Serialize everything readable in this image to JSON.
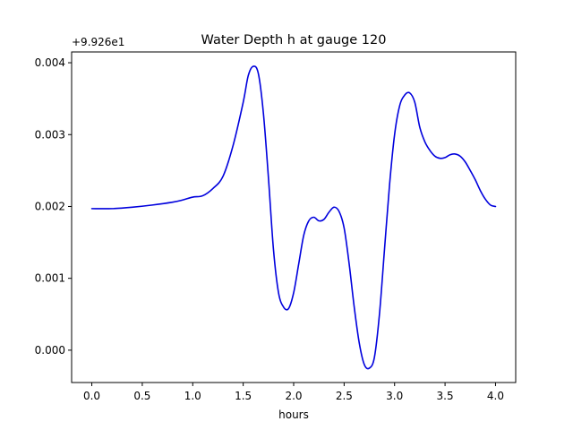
{
  "chart_data": {
    "type": "line",
    "title": "Water Depth h at gauge 120",
    "xlabel": "hours",
    "ylabel": "",
    "y_offset_label": "+9.926e1",
    "xlim": [
      -0.2,
      4.2
    ],
    "ylim": [
      -0.00045,
      0.00415
    ],
    "x_ticks": [
      0.0,
      0.5,
      1.0,
      1.5,
      2.0,
      2.5,
      3.0,
      3.5,
      4.0
    ],
    "x_tick_labels": [
      "0.0",
      "0.5",
      "1.0",
      "1.5",
      "2.0",
      "2.5",
      "3.0",
      "3.5",
      "4.0"
    ],
    "y_ticks": [
      0.0,
      0.001,
      0.002,
      0.003,
      0.004
    ],
    "y_tick_labels": [
      "0.000",
      "0.001",
      "0.002",
      "0.003",
      "0.004"
    ],
    "grid": false,
    "legend": "none",
    "series": [
      {
        "color": "#0000dd",
        "x": [
          0.0,
          0.2,
          0.4,
          0.6,
          0.8,
          0.9,
          1.0,
          1.1,
          1.2,
          1.3,
          1.4,
          1.5,
          1.55,
          1.6,
          1.65,
          1.7,
          1.75,
          1.8,
          1.85,
          1.9,
          1.95,
          2.0,
          2.05,
          2.1,
          2.15,
          2.2,
          2.25,
          2.3,
          2.35,
          2.4,
          2.45,
          2.5,
          2.55,
          2.6,
          2.65,
          2.7,
          2.75,
          2.8,
          2.85,
          2.9,
          2.95,
          3.0,
          3.05,
          3.1,
          3.15,
          3.2,
          3.25,
          3.3,
          3.35,
          3.4,
          3.45,
          3.5,
          3.55,
          3.6,
          3.65,
          3.7,
          3.75,
          3.8,
          3.85,
          3.9,
          3.95,
          4.0
        ],
        "y": [
          0.00197,
          0.00197,
          0.00199,
          0.00202,
          0.00206,
          0.00209,
          0.00213,
          0.00215,
          0.00225,
          0.00242,
          0.00285,
          0.00345,
          0.00382,
          0.00395,
          0.00385,
          0.0033,
          0.0024,
          0.0014,
          0.0008,
          0.0006,
          0.00058,
          0.0008,
          0.0012,
          0.0016,
          0.0018,
          0.00185,
          0.0018,
          0.00182,
          0.00192,
          0.00199,
          0.00193,
          0.0017,
          0.0012,
          0.0006,
          0.0001,
          -0.0002,
          -0.00025,
          -0.0001,
          0.0005,
          0.0014,
          0.0023,
          0.003,
          0.0034,
          0.00355,
          0.00358,
          0.00345,
          0.0031,
          0.0029,
          0.00278,
          0.0027,
          0.00267,
          0.00268,
          0.00272,
          0.00273,
          0.0027,
          0.00262,
          0.0025,
          0.00237,
          0.00222,
          0.0021,
          0.00202,
          0.002
        ]
      }
    ]
  }
}
